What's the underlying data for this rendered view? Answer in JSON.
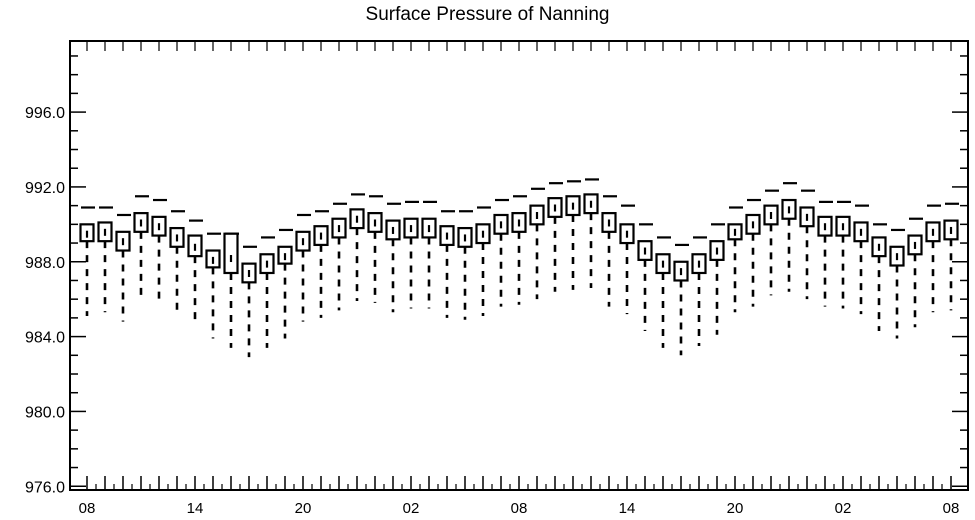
{
  "chart_data": {
    "type": "box",
    "title": "Surface Pressure of Nanning",
    "xlabel": "",
    "ylabel": "",
    "ylim": [
      975.8,
      999.8
    ],
    "yticks": [
      976.0,
      980.0,
      984.0,
      988.0,
      992.0,
      996.0
    ],
    "ytick_labels": [
      "976.0",
      "980.0",
      "984.0",
      "988.0",
      "992.0",
      "996.0"
    ],
    "xtick_labels": [
      "08",
      "14",
      "20",
      "02",
      "08",
      "14",
      "20",
      "02",
      "08"
    ],
    "xtick_hours": [
      0,
      6,
      12,
      18,
      24,
      30,
      36,
      42,
      48
    ],
    "grid": false,
    "boxes": [
      {
        "hour": 0,
        "whisker_low": 985.1,
        "q1": 989.1,
        "median": 989.5,
        "q3": 990.0,
        "whisker_high": 990.9
      },
      {
        "hour": 1,
        "whisker_low": 985.3,
        "q1": 989.1,
        "median": 989.6,
        "q3": 990.1,
        "whisker_high": 990.9
      },
      {
        "hour": 2,
        "whisker_low": 984.8,
        "q1": 988.6,
        "median": 989.1,
        "q3": 989.6,
        "whisker_high": 990.5
      },
      {
        "hour": 3,
        "whisker_low": 985.9,
        "q1": 989.6,
        "median": 990.1,
        "q3": 990.6,
        "whisker_high": 991.5
      },
      {
        "hour": 4,
        "whisker_low": 985.7,
        "q1": 989.4,
        "median": 989.9,
        "q3": 990.4,
        "whisker_high": 991.3
      },
      {
        "hour": 5,
        "whisker_low": 985.1,
        "q1": 988.8,
        "median": 989.3,
        "q3": 989.8,
        "whisker_high": 990.7
      },
      {
        "hour": 6,
        "whisker_low": 984.6,
        "q1": 988.3,
        "median": 988.8,
        "q3": 989.4,
        "whisker_high": 990.2
      },
      {
        "hour": 7,
        "whisker_low": 983.9,
        "q1": 987.7,
        "median": 988.1,
        "q3": 988.6,
        "whisker_high": 989.5
      },
      {
        "hour": 8,
        "whisker_low": 983.4,
        "q1": 987.4,
        "median": 988.2,
        "q3": 989.5,
        "whisker_high": 989.5
      },
      {
        "hour": 9,
        "whisker_low": 982.9,
        "q1": 986.9,
        "median": 987.4,
        "q3": 987.9,
        "whisker_high": 988.8
      },
      {
        "hour": 10,
        "whisker_low": 983.4,
        "q1": 987.4,
        "median": 987.9,
        "q3": 988.4,
        "whisker_high": 989.3
      },
      {
        "hour": 11,
        "whisker_low": 983.9,
        "q1": 987.9,
        "median": 988.3,
        "q3": 988.8,
        "whisker_high": 989.7
      },
      {
        "hour": 12,
        "whisker_low": 984.8,
        "q1": 988.6,
        "median": 989.1,
        "q3": 989.6,
        "whisker_high": 990.5
      },
      {
        "hour": 13,
        "whisker_low": 985.0,
        "q1": 988.9,
        "median": 989.4,
        "q3": 989.9,
        "whisker_high": 990.7
      },
      {
        "hour": 14,
        "whisker_low": 985.4,
        "q1": 989.3,
        "median": 989.8,
        "q3": 990.3,
        "whisker_high": 991.1
      },
      {
        "hour": 15,
        "whisker_low": 985.9,
        "q1": 989.8,
        "median": 990.3,
        "q3": 990.8,
        "whisker_high": 991.6
      },
      {
        "hour": 16,
        "whisker_low": 985.8,
        "q1": 989.6,
        "median": 990.1,
        "q3": 990.6,
        "whisker_high": 991.5
      },
      {
        "hour": 17,
        "whisker_low": 985.3,
        "q1": 989.2,
        "median": 989.7,
        "q3": 990.2,
        "whisker_high": 991.1
      },
      {
        "hour": 18,
        "whisker_low": 985.5,
        "q1": 989.3,
        "median": 989.8,
        "q3": 990.3,
        "whisker_high": 991.2
      },
      {
        "hour": 19,
        "whisker_low": 985.5,
        "q1": 989.3,
        "median": 989.8,
        "q3": 990.3,
        "whisker_high": 991.2
      },
      {
        "hour": 20,
        "whisker_low": 985.0,
        "q1": 988.9,
        "median": 989.4,
        "q3": 989.9,
        "whisker_high": 990.7
      },
      {
        "hour": 21,
        "whisker_low": 984.9,
        "q1": 988.8,
        "median": 989.3,
        "q3": 989.8,
        "whisker_high": 990.7
      },
      {
        "hour": 22,
        "whisker_low": 985.1,
        "q1": 989.0,
        "median": 989.5,
        "q3": 990.0,
        "whisker_high": 990.9
      },
      {
        "hour": 23,
        "whisker_low": 985.6,
        "q1": 989.5,
        "median": 990.0,
        "q3": 990.5,
        "whisker_high": 991.3
      },
      {
        "hour": 24,
        "whisker_low": 985.7,
        "q1": 989.6,
        "median": 990.1,
        "q3": 990.6,
        "whisker_high": 991.5
      },
      {
        "hour": 25,
        "whisker_low": 986.0,
        "q1": 990.0,
        "median": 990.5,
        "q3": 991.0,
        "whisker_high": 991.9
      },
      {
        "hour": 26,
        "whisker_low": 986.4,
        "q1": 990.4,
        "median": 990.9,
        "q3": 991.4,
        "whisker_high": 992.2
      },
      {
        "hour": 27,
        "whisker_low": 986.5,
        "q1": 990.5,
        "median": 991.0,
        "q3": 991.5,
        "whisker_high": 992.3
      },
      {
        "hour": 28,
        "whisker_low": 986.6,
        "q1": 990.6,
        "median": 991.1,
        "q3": 991.6,
        "whisker_high": 992.4
      },
      {
        "hour": 29,
        "whisker_low": 985.6,
        "q1": 989.6,
        "median": 990.1,
        "q3": 990.6,
        "whisker_high": 991.5
      },
      {
        "hour": 30,
        "whisker_low": 985.2,
        "q1": 989.0,
        "median": 989.5,
        "q3": 990.0,
        "whisker_high": 991.0
      },
      {
        "hour": 31,
        "whisker_low": 984.3,
        "q1": 988.1,
        "median": 988.6,
        "q3": 989.1,
        "whisker_high": 990.0
      },
      {
        "hour": 32,
        "whisker_low": 983.4,
        "q1": 987.4,
        "median": 987.9,
        "q3": 988.4,
        "whisker_high": 989.3
      },
      {
        "hour": 33,
        "whisker_low": 983.0,
        "q1": 987.0,
        "median": 987.5,
        "q3": 988.0,
        "whisker_high": 988.9
      },
      {
        "hour": 34,
        "whisker_low": 983.5,
        "q1": 987.4,
        "median": 987.9,
        "q3": 988.4,
        "whisker_high": 989.3
      },
      {
        "hour": 35,
        "whisker_low": 984.1,
        "q1": 988.1,
        "median": 988.6,
        "q3": 989.1,
        "whisker_high": 990.0
      },
      {
        "hour": 36,
        "whisker_low": 985.3,
        "q1": 989.2,
        "median": 989.6,
        "q3": 990.0,
        "whisker_high": 990.9
      },
      {
        "hour": 37,
        "whisker_low": 985.6,
        "q1": 989.5,
        "median": 990.0,
        "q3": 990.5,
        "whisker_high": 991.3
      },
      {
        "hour": 38,
        "whisker_low": 986.2,
        "q1": 990.0,
        "median": 990.5,
        "q3": 991.0,
        "whisker_high": 991.8
      },
      {
        "hour": 39,
        "whisker_low": 986.4,
        "q1": 990.3,
        "median": 990.8,
        "q3": 991.3,
        "whisker_high": 992.2
      },
      {
        "hour": 40,
        "whisker_low": 986.0,
        "q1": 989.9,
        "median": 990.4,
        "q3": 990.9,
        "whisker_high": 991.8
      },
      {
        "hour": 41,
        "whisker_low": 985.6,
        "q1": 989.4,
        "median": 989.9,
        "q3": 990.4,
        "whisker_high": 991.2
      },
      {
        "hour": 42,
        "whisker_low": 985.5,
        "q1": 989.4,
        "median": 989.9,
        "q3": 990.4,
        "whisker_high": 991.2
      },
      {
        "hour": 43,
        "whisker_low": 985.2,
        "q1": 989.1,
        "median": 989.6,
        "q3": 990.1,
        "whisker_high": 991.0
      },
      {
        "hour": 44,
        "whisker_low": 984.3,
        "q1": 988.3,
        "median": 988.8,
        "q3": 989.3,
        "whisker_high": 990.0
      },
      {
        "hour": 45,
        "whisker_low": 983.9,
        "q1": 987.8,
        "median": 988.3,
        "q3": 988.8,
        "whisker_high": 989.7
      },
      {
        "hour": 46,
        "whisker_low": 984.5,
        "q1": 988.4,
        "median": 988.9,
        "q3": 989.4,
        "whisker_high": 990.3
      },
      {
        "hour": 47,
        "whisker_low": 985.3,
        "q1": 989.1,
        "median": 989.6,
        "q3": 990.1,
        "whisker_high": 991.0
      },
      {
        "hour": 48,
        "whisker_low": 985.4,
        "q1": 989.2,
        "median": 989.7,
        "q3": 990.2,
        "whisker_high": 991.1
      }
    ]
  }
}
